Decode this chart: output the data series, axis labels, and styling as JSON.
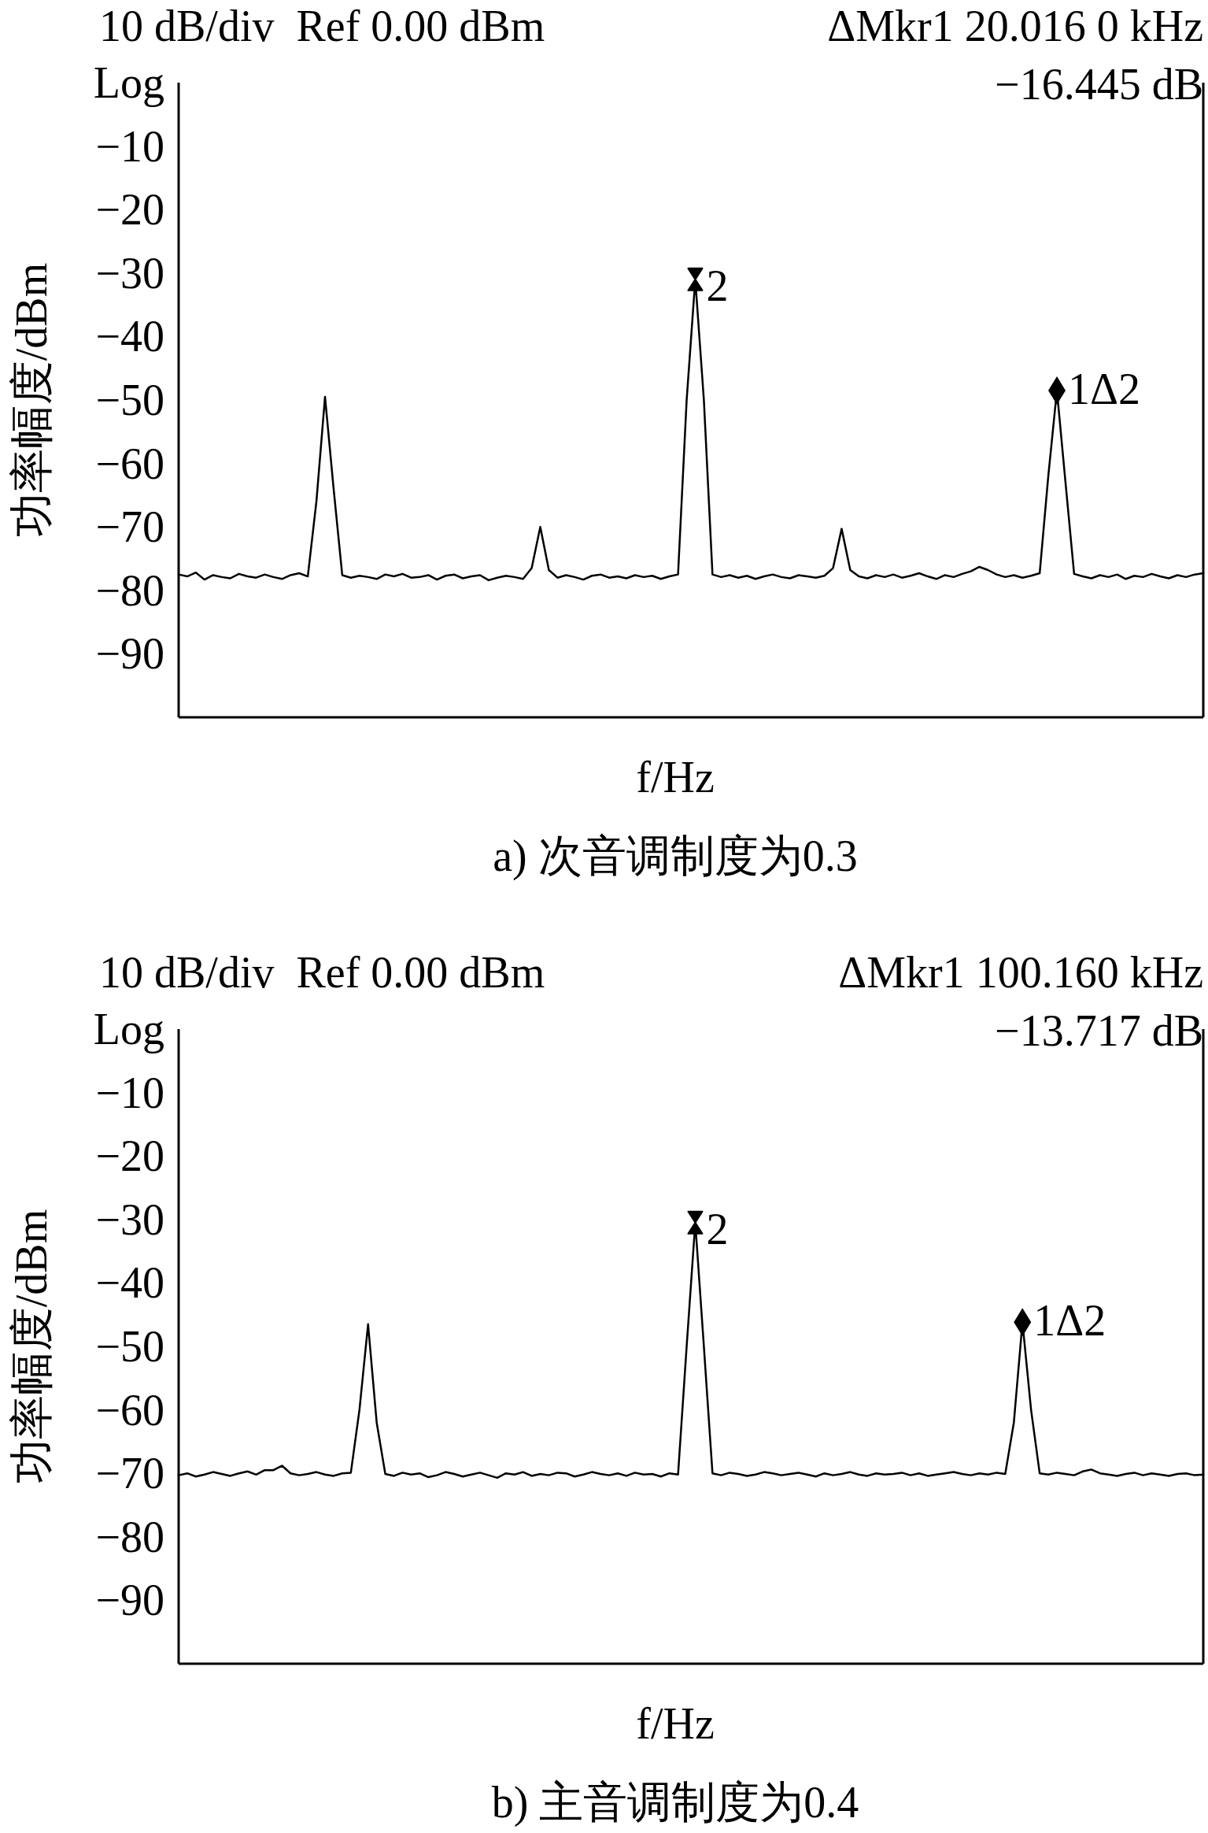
{
  "chart_data": [
    {
      "type": "line",
      "title": "a) 次音调制度为0.3",
      "xlabel": "f/Hz",
      "ylabel": "功率幅度/dBm",
      "categories": [
        null,
        null,
        null,
        null,
        null,
        null,
        null,
        null,
        null,
        null,
        null,
        null,
        null,
        null,
        null,
        null,
        null,
        null,
        null,
        null,
        null,
        null,
        null,
        null,
        null,
        null,
        null,
        null,
        null,
        null,
        null,
        null,
        null,
        null,
        null,
        null,
        null,
        null,
        null,
        null,
        null,
        null,
        null,
        null,
        null,
        null,
        null,
        null,
        null,
        null,
        null,
        null,
        null,
        null,
        null,
        null,
        null,
        null,
        null,
        null,
        null,
        null,
        null,
        null,
        null,
        null,
        null,
        null,
        null,
        null,
        null,
        null,
        null,
        null,
        null,
        null,
        null,
        null,
        null,
        null,
        null,
        null,
        null,
        null,
        null,
        null,
        null,
        null,
        null,
        null,
        null,
        null,
        null,
        null,
        null,
        null,
        null,
        null,
        null,
        null,
        null,
        null,
        null,
        null,
        null,
        null,
        null,
        null,
        null,
        null,
        null,
        null,
        null,
        null,
        null,
        null,
        null,
        null,
        null,
        null
      ],
      "series": [
        {
          "color": "#000000",
          "values": [
            -77.5,
            -77.8,
            -77.2,
            -78.3,
            -77.6,
            -77.9,
            -78.1,
            -77.4,
            -77.8,
            -78.0,
            -77.5,
            -77.9,
            -78.2,
            -77.6,
            -77.3,
            -77.8,
            -66,
            -49.5,
            -64,
            -77.6,
            -78.0,
            -77.7,
            -77.9,
            -78.2,
            -77.5,
            -77.8,
            -77.4,
            -78.0,
            -77.9,
            -77.6,
            -78.3,
            -77.7,
            -77.5,
            -78.1,
            -77.8,
            -77.6,
            -78.4,
            -78.0,
            -77.7,
            -77.9,
            -78.2,
            -76.5,
            -70,
            -76.8,
            -78.0,
            -77.6,
            -77.9,
            -78.3,
            -77.7,
            -77.5,
            -78.0,
            -77.8,
            -78.1,
            -77.6,
            -77.9,
            -77.7,
            -78.2,
            -77.8,
            -77.5,
            -50,
            -31,
            -50,
            -77.5,
            -77.9,
            -77.6,
            -78.0,
            -77.7,
            -78.2,
            -77.8,
            -77.5,
            -77.9,
            -78.1,
            -77.6,
            -77.8,
            -78.0,
            -77.7,
            -76.5,
            -70.3,
            -76.8,
            -77.8,
            -78.1,
            -77.6,
            -77.9,
            -77.5,
            -78.0,
            -77.7,
            -77.3,
            -77.8,
            -78.2,
            -77.6,
            -77.9,
            -77.4,
            -77.0,
            -76.3,
            -76.8,
            -77.5,
            -77.9,
            -77.6,
            -78.0,
            -77.7,
            -77.3,
            -62,
            -48.5,
            -63,
            -77.4,
            -77.8,
            -78.1,
            -77.6,
            -77.9,
            -77.5,
            -78.2,
            -77.7,
            -77.9,
            -77.4,
            -77.8,
            -78.1,
            -77.6,
            -77.9,
            -77.5,
            -77.3
          ]
        }
      ],
      "ylim": [
        -100,
        0
      ],
      "yticks": [
        {
          "value": 0,
          "label": "Log"
        },
        -10,
        -20,
        -30,
        -40,
        -50,
        -60,
        -70,
        -80,
        -90
      ],
      "annotations": [
        "10 dB/div  Ref 0.00 dBm",
        "ΔMkr1 20.016 0 kHz",
        "−16.445 dB",
        "2",
        "1Δ2"
      ]
    },
    {
      "type": "line",
      "title": "b) 主音调制度为0.4",
      "xlabel": "f/Hz",
      "ylabel": "功率幅度/dBm",
      "categories": [
        null,
        null,
        null,
        null,
        null,
        null,
        null,
        null,
        null,
        null,
        null,
        null,
        null,
        null,
        null,
        null,
        null,
        null,
        null,
        null,
        null,
        null,
        null,
        null,
        null,
        null,
        null,
        null,
        null,
        null,
        null,
        null,
        null,
        null,
        null,
        null,
        null,
        null,
        null,
        null,
        null,
        null,
        null,
        null,
        null,
        null,
        null,
        null,
        null,
        null,
        null,
        null,
        null,
        null,
        null,
        null,
        null,
        null,
        null,
        null,
        null,
        null,
        null,
        null,
        null,
        null,
        null,
        null,
        null,
        null,
        null,
        null,
        null,
        null,
        null,
        null,
        null,
        null,
        null,
        null,
        null,
        null,
        null,
        null,
        null,
        null,
        null,
        null,
        null,
        null,
        null,
        null,
        null,
        null,
        null,
        null,
        null,
        null,
        null,
        null,
        null,
        null,
        null,
        null,
        null,
        null,
        null,
        null,
        null,
        null,
        null,
        null,
        null,
        null,
        null,
        null,
        null,
        null,
        null,
        null
      ],
      "series": [
        {
          "color": "#000000",
          "values": [
            -70.3,
            -70.0,
            -70.5,
            -70.2,
            -69.8,
            -70.1,
            -70.4,
            -70.0,
            -69.7,
            -70.2,
            -69.5,
            -69.5,
            -68.8,
            -70.0,
            -70.3,
            -70.1,
            -69.8,
            -70.2,
            -70.4,
            -70.0,
            -69.9,
            -60,
            -46.5,
            -62,
            -70.1,
            -70.4,
            -69.9,
            -70.2,
            -70.0,
            -70.6,
            -70.3,
            -69.8,
            -70.1,
            -70.5,
            -70.2,
            -69.9,
            -70.3,
            -70.7,
            -70.0,
            -70.2,
            -69.8,
            -70.4,
            -70.1,
            -70.3,
            -69.9,
            -70.0,
            -70.5,
            -70.2,
            -69.8,
            -70.1,
            -70.3,
            -70.0,
            -70.4,
            -69.9,
            -70.2,
            -70.1,
            -70.5,
            -70.0,
            -70.2,
            -50,
            -30.5,
            -50,
            -70.0,
            -70.3,
            -69.9,
            -70.1,
            -70.4,
            -70.2,
            -69.8,
            -70.0,
            -70.3,
            -70.1,
            -69.9,
            -70.2,
            -70.5,
            -70.0,
            -70.3,
            -70.1,
            -69.8,
            -70.2,
            -70.4,
            -70.0,
            -70.2,
            -70.1,
            -69.9,
            -70.3,
            -70.0,
            -70.4,
            -70.2,
            -70.0,
            -69.8,
            -70.1,
            -70.3,
            -70.0,
            -70.2,
            -69.9,
            -70.1,
            -62,
            -46.2,
            -60,
            -70.0,
            -70.2,
            -69.9,
            -70.1,
            -70.3,
            -69.7,
            -69.4,
            -70.0,
            -70.2,
            -70.4,
            -70.1,
            -69.9,
            -70.3,
            -70.0,
            -70.2,
            -70.4,
            -70.1,
            -70.0,
            -70.3,
            -70.2
          ]
        }
      ],
      "ylim": [
        -100,
        0
      ],
      "yticks": [
        {
          "value": 0,
          "label": "Log"
        },
        -10,
        -20,
        -30,
        -40,
        -50,
        -60,
        -70,
        -80,
        -90
      ],
      "annotations": [
        "10 dB/div  Ref 0.00 dBm",
        "ΔMkr1 100.160 kHz",
        "−13.717 dB",
        "2",
        "1Δ2"
      ]
    }
  ]
}
